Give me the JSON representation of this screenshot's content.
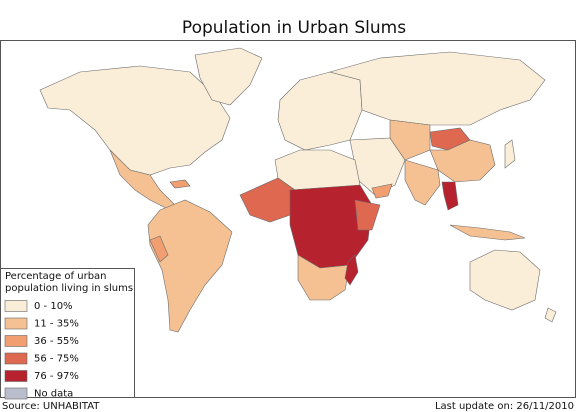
{
  "title": "Population in Urban Slums",
  "legend": {
    "title_lines": [
      "Percentage of urban",
      "population living in slums"
    ],
    "items": [
      {
        "label": "0 - 10%",
        "color": "#fbeed8"
      },
      {
        "label": "11 - 35%",
        "color": "#f5c193"
      },
      {
        "label": "36 - 55%",
        "color": "#f19f70"
      },
      {
        "label": "56 - 75%",
        "color": "#df6850"
      },
      {
        "label": "76 - 97%",
        "color": "#b7222f"
      },
      {
        "label": "No data",
        "color": "#b9bdcc"
      }
    ]
  },
  "source": "Source: UNHABITAT",
  "last_update": "Last update on: 26/11/2010"
}
